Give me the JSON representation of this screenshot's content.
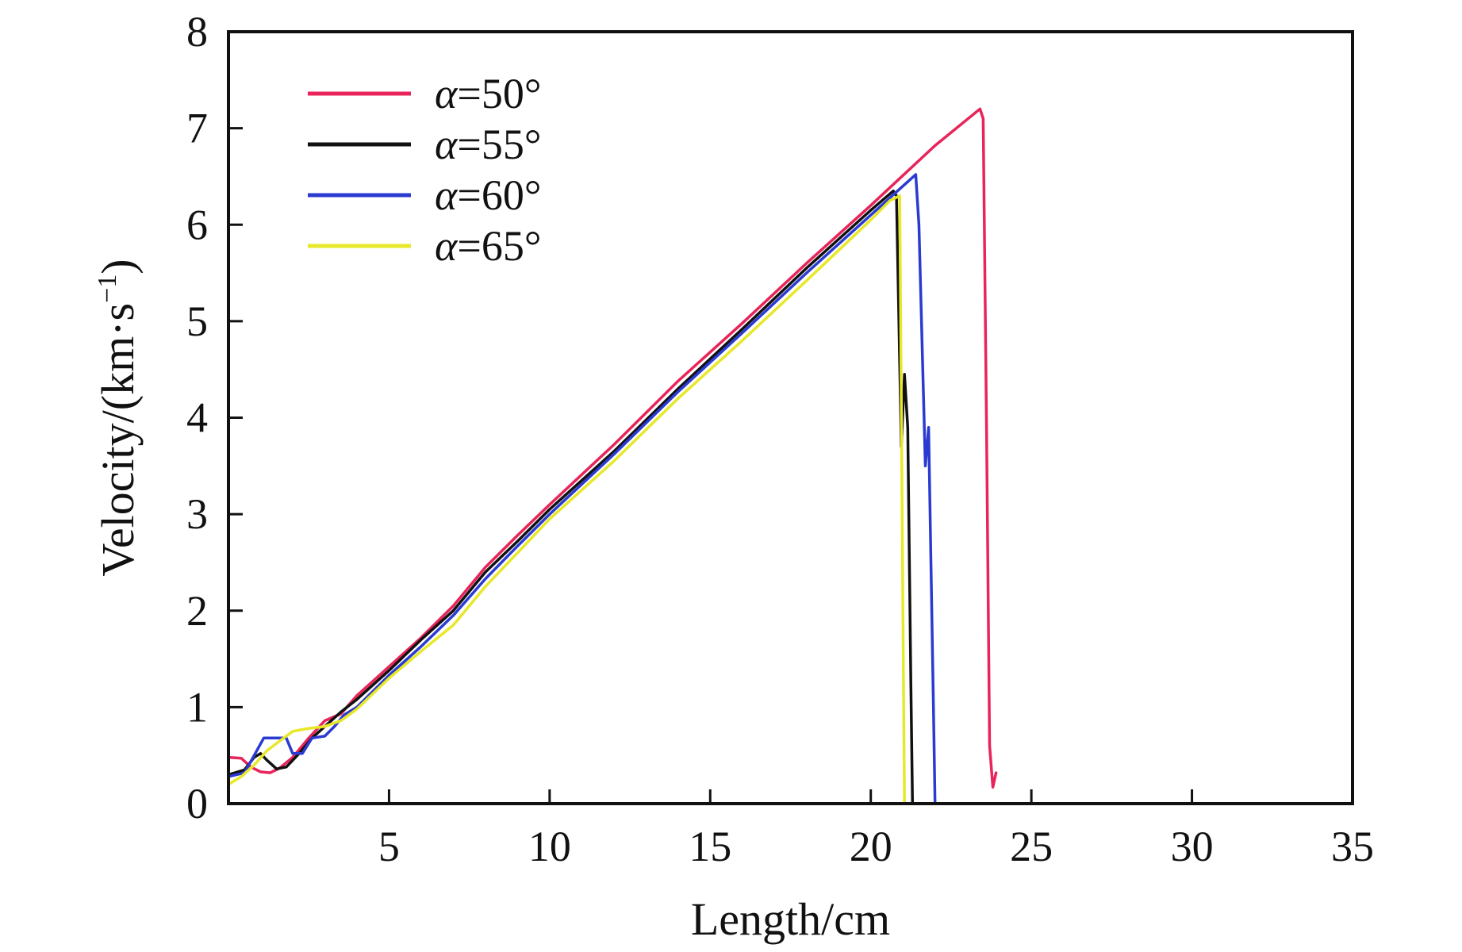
{
  "chart_data": {
    "type": "line",
    "xlabel": "Length/cm",
    "ylabel": "Velocity/(km·s",
    "ylabel_sup": "−1",
    "ylabel_end": ")",
    "xlim": [
      0,
      35
    ],
    "ylim": [
      0,
      8
    ],
    "xticks": [
      5,
      10,
      15,
      20,
      25,
      30,
      35
    ],
    "yticks": [
      0,
      1,
      2,
      3,
      4,
      5,
      6,
      7,
      8
    ],
    "grid": false,
    "legend_position": "top-left",
    "series": [
      {
        "name": "α=50°",
        "symbol": "α",
        "value_text": "=50°",
        "color": "#e8245a",
        "x": [
          0,
          0.4,
          0.7,
          1.0,
          1.3,
          1.6,
          2.0,
          2.5,
          3.0,
          3.5,
          4.0,
          5.0,
          6.0,
          7.0,
          8.0,
          9.0,
          10.0,
          12.0,
          14.0,
          16.0,
          18.0,
          20.0,
          22.0,
          23.4,
          23.5,
          23.6,
          23.7,
          23.8,
          23.9
        ],
        "y": [
          0.48,
          0.47,
          0.38,
          0.33,
          0.32,
          0.37,
          0.48,
          0.68,
          0.86,
          0.93,
          1.12,
          1.42,
          1.72,
          2.05,
          2.45,
          2.78,
          3.1,
          3.72,
          4.38,
          4.98,
          5.6,
          6.2,
          6.82,
          7.2,
          7.1,
          4.0,
          0.6,
          0.17,
          0.32
        ]
      },
      {
        "name": "α=55°",
        "symbol": "α",
        "value_text": "=55°",
        "color": "#111111",
        "x": [
          0,
          0.5,
          0.8,
          1.0,
          1.2,
          1.5,
          1.8,
          2.2,
          2.6,
          3.0,
          3.5,
          4.0,
          5.0,
          6.0,
          7.0,
          8.0,
          9.0,
          10.0,
          12.0,
          14.0,
          16.0,
          18.0,
          20.0,
          20.7,
          20.8,
          20.95,
          21.05,
          21.15,
          21.25,
          21.3
        ],
        "y": [
          0.3,
          0.35,
          0.48,
          0.52,
          0.45,
          0.36,
          0.38,
          0.52,
          0.68,
          0.8,
          0.95,
          1.08,
          1.38,
          1.7,
          2.0,
          2.4,
          2.72,
          3.05,
          3.65,
          4.3,
          4.92,
          5.55,
          6.15,
          6.35,
          6.3,
          3.7,
          4.45,
          3.9,
          1.2,
          0.0
        ]
      },
      {
        "name": "α=60°",
        "symbol": "α",
        "value_text": "=60°",
        "color": "#2b3bd1",
        "x": [
          0,
          0.5,
          0.8,
          1.1,
          1.4,
          1.8,
          2.0,
          2.3,
          2.6,
          3.0,
          3.3,
          3.6,
          4.0,
          5.0,
          6.0,
          7.0,
          8.0,
          9.0,
          10.0,
          12.0,
          14.0,
          16.0,
          18.0,
          20.0,
          21.0,
          21.4,
          21.5,
          21.7,
          21.8,
          21.95,
          22.0
        ],
        "y": [
          0.28,
          0.32,
          0.5,
          0.68,
          0.68,
          0.68,
          0.52,
          0.52,
          0.68,
          0.7,
          0.8,
          0.92,
          1.0,
          1.33,
          1.63,
          1.95,
          2.33,
          2.67,
          3.0,
          3.62,
          4.27,
          4.88,
          5.5,
          6.1,
          6.4,
          6.52,
          6.0,
          3.5,
          3.9,
          1.0,
          0.0
        ]
      },
      {
        "name": "α=65°",
        "symbol": "α",
        "value_text": "=65°",
        "color": "#e7e82a",
        "x": [
          0,
          0.4,
          0.8,
          1.2,
          1.6,
          2.0,
          2.5,
          3.0,
          3.5,
          4.0,
          5.0,
          6.0,
          7.0,
          8.0,
          9.0,
          10.0,
          12.0,
          14.0,
          16.0,
          18.0,
          20.0,
          20.6,
          20.9,
          21.0,
          21.05
        ],
        "y": [
          0.2,
          0.28,
          0.4,
          0.55,
          0.65,
          0.75,
          0.78,
          0.8,
          0.86,
          0.98,
          1.3,
          1.58,
          1.85,
          2.25,
          2.6,
          2.95,
          3.55,
          4.2,
          4.8,
          5.42,
          6.05,
          6.25,
          6.3,
          2.0,
          0.0
        ]
      }
    ]
  }
}
